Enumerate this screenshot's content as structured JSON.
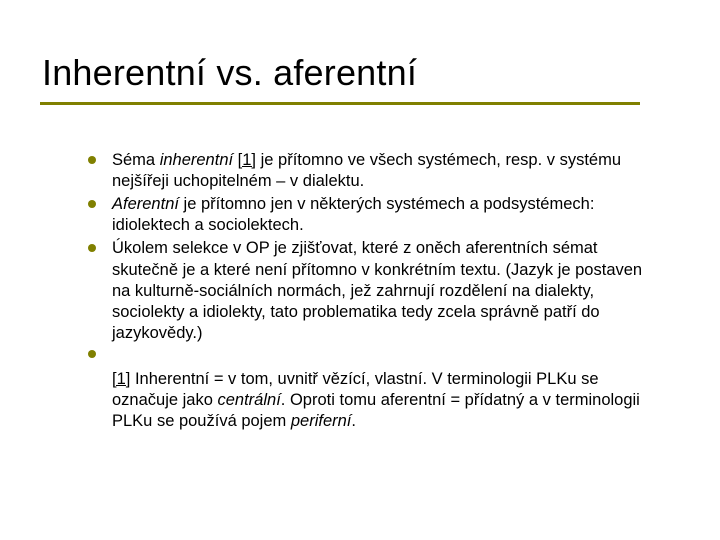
{
  "title": "Inherentní vs. aferentní",
  "colors": {
    "accent": "#808000",
    "text": "#000000",
    "background": "#ffffff"
  },
  "typography": {
    "title_fontsize": 36,
    "body_fontsize": 16.5,
    "font_family": "Arial"
  },
  "bullets": [
    {
      "html": "Séma <span class='it'>inherentní</span> <span class='fn-ref'>[1]</span> je přítomno ve všech systémech, resp. v systému nejšířeji uchopitelném – v dialektu."
    },
    {
      "html": "<span class='it'>Aferentní</span> je přítomno jen v některých systémech a podsystémech: idiolektech a sociolektech."
    },
    {
      "html": "Úkolem selekce v OP je zjišťovat, které z oněch aferentních sémat skutečně je a které není přítomno v konkrétním textu. (Jazyk je postaven na kulturně-sociálních normách, jež zahrnují rozdělení na dialekty, sociolekty a idiolekty, tato problematika tedy zcela správně patří do jazykovědy.)"
    }
  ],
  "footnote": {
    "html": "<span class='fn-ref'>[1]</span> Inherentní = v tom, uvnitř vězící, vlastní. V terminologii PLKu se označuje jako <span class='it'>centrální</span>. Oproti tomu aferentní = přídatný a v terminologii PLKu se používá pojem <span class='it'>periferní</span>."
  }
}
